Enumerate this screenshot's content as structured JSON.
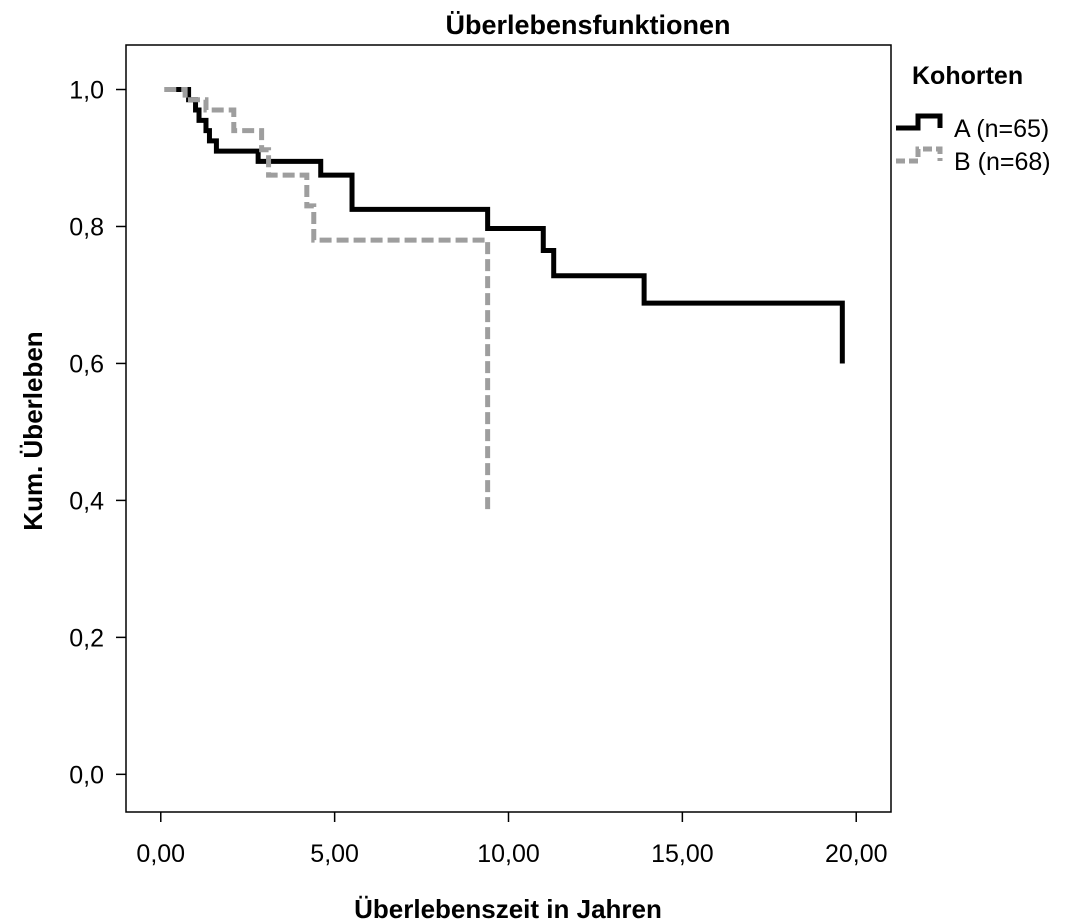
{
  "chart_data": {
    "type": "line",
    "title": "Überlebensfunktionen",
    "xlabel": "Überlebenszeit in Jahren",
    "ylabel": "Kum. Überleben",
    "xlim": [
      -1.0,
      21.0
    ],
    "ylim": [
      -0.055,
      1.065
    ],
    "x_ticks": [
      0,
      5,
      10,
      15,
      20
    ],
    "x_tick_labels": [
      "0,00",
      "5,00",
      "10,00",
      "15,00",
      "20,00"
    ],
    "y_ticks": [
      0,
      0.2,
      0.4,
      0.6,
      0.8,
      1.0
    ],
    "y_tick_labels": [
      "0,0",
      "0,2",
      "0,4",
      "0,6",
      "0,8",
      "1,0"
    ],
    "grid": false,
    "step": true,
    "legend": {
      "title": "Kohorten",
      "placement": "right"
    },
    "series": [
      {
        "name": "A (n=65)",
        "color": "#000000",
        "style": "solid",
        "x": [
          0.3,
          0.8,
          1.0,
          1.1,
          1.3,
          1.4,
          1.6,
          2.8,
          4.6,
          5.5,
          9.4,
          11.0,
          11.3,
          13.9,
          19.6
        ],
        "y": [
          1.0,
          0.985,
          0.97,
          0.955,
          0.94,
          0.925,
          0.91,
          0.895,
          0.875,
          0.825,
          0.797,
          0.765,
          0.728,
          0.688,
          0.6
        ]
      },
      {
        "name": "B (n=68)",
        "color": "#9e9e9e",
        "style": "dashed",
        "x": [
          0.1,
          0.7,
          1.3,
          2.1,
          2.9,
          3.1,
          4.2,
          4.4,
          9.3,
          9.4
        ],
        "y": [
          1.0,
          0.985,
          0.97,
          0.94,
          0.912,
          0.875,
          0.83,
          0.78,
          0.78,
          0.385
        ],
        "end_x": 9.45
      }
    ]
  }
}
